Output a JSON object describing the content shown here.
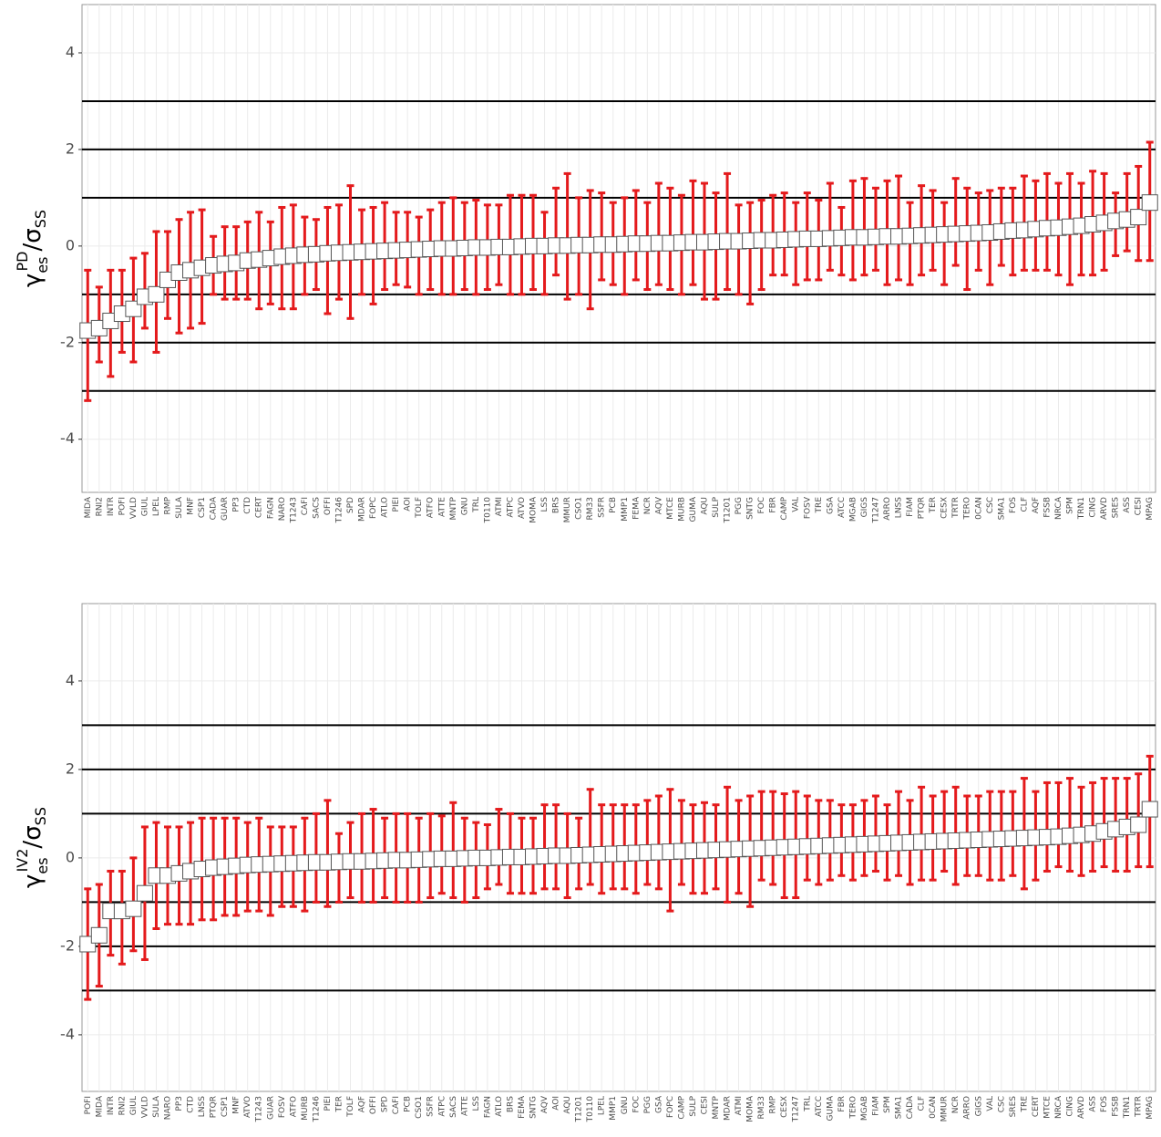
{
  "chart_data": [
    {
      "type": "errorbox",
      "ylabel": {
        "symbol": "γ",
        "sub": "es",
        "sup": "PD",
        "rest": "/σ",
        "rest_sub": "SS"
      },
      "categories": [
        "MIDA",
        "RNI2",
        "INTR",
        "POFI",
        "VVLD",
        "GIUL",
        "LPEL",
        "RMP",
        "SULA",
        "MNF",
        "CSP1",
        "CADA",
        "GUAR",
        "PP3",
        "CTD",
        "CERT",
        "FAGN",
        "NARO",
        "T1243",
        "CAFI",
        "SACS",
        "OFFI",
        "T1246",
        "SPD",
        "MDAR",
        "FOPC",
        "ATLO",
        "PIEI",
        "AOI",
        "TOLF",
        "ATFO",
        "ATTE",
        "MNTP",
        "GNU",
        "TRL",
        "T0110",
        "ATMI",
        "ATPC",
        "ATVO",
        "MOMA",
        "LSS",
        "BRS",
        "MMUR",
        "CSO1",
        "RM33",
        "SSFR",
        "PCB",
        "MMP1",
        "FEMA",
        "NCR",
        "AQV",
        "MTCE",
        "MURB",
        "GUMA",
        "AQU",
        "SULP",
        "T1201",
        "PGG",
        "SNTG",
        "FOC",
        "FBR",
        "CAMP",
        "VAL",
        "FOSV",
        "TRE",
        "GSA",
        "ATCC",
        "MGAB",
        "GIGS",
        "T1247",
        "ARRO",
        "LNSS",
        "FIAM",
        "PTQR",
        "TER",
        "CESX",
        "TRTR",
        "TERO",
        "0CAN",
        "CSC",
        "SMA1",
        "FOS",
        "CLF",
        "AQF",
        "FSSB",
        "NRCA",
        "SPM",
        "TRN1",
        "CING",
        "ARVD",
        "SRES",
        "ASS",
        "CESI",
        "MPAG"
      ],
      "values": [
        -1.75,
        -1.7,
        -1.55,
        -1.4,
        -1.3,
        -1.05,
        -1.0,
        -0.7,
        -0.55,
        -0.5,
        -0.45,
        -0.4,
        -0.37,
        -0.35,
        -0.3,
        -0.28,
        -0.25,
        -0.22,
        -0.2,
        -0.18,
        -0.17,
        -0.15,
        -0.14,
        -0.13,
        -0.12,
        -0.11,
        -0.1,
        -0.09,
        -0.08,
        -0.07,
        -0.06,
        -0.05,
        -0.05,
        -0.04,
        -0.03,
        -0.03,
        -0.02,
        -0.02,
        -0.01,
        0,
        0,
        0.01,
        0.01,
        0.02,
        0.02,
        0.03,
        0.03,
        0.04,
        0.05,
        0.05,
        0.06,
        0.06,
        0.07,
        0.08,
        0.08,
        0.09,
        0.1,
        0.1,
        0.11,
        0.12,
        0.12,
        0.13,
        0.14,
        0.15,
        0.15,
        0.16,
        0.17,
        0.18,
        0.18,
        0.19,
        0.2,
        0.2,
        0.21,
        0.22,
        0.23,
        0.24,
        0.25,
        0.26,
        0.27,
        0.28,
        0.3,
        0.32,
        0.33,
        0.35,
        0.37,
        0.38,
        0.4,
        0.42,
        0.45,
        0.48,
        0.52,
        0.55,
        0.6,
        0.9
      ],
      "error_low": [
        -3.2,
        -2.4,
        -2.7,
        -2.2,
        -2.4,
        -1.7,
        -2.2,
        -1.5,
        -1.8,
        -1.7,
        -1.6,
        -1.0,
        -1.1,
        -1.1,
        -1.1,
        -1.3,
        -1.2,
        -1.3,
        -1.3,
        -1.0,
        -0.9,
        -1.4,
        -1.1,
        -1.5,
        -1.0,
        -1.2,
        -0.9,
        -0.8,
        -0.85,
        -1.0,
        -0.9,
        -1.0,
        -1.0,
        -0.9,
        -1.0,
        -0.9,
        -0.8,
        -1.0,
        -1.0,
        -0.9,
        -1.0,
        -0.6,
        -1.1,
        -1.0,
        -1.3,
        -0.7,
        -0.8,
        -1.0,
        -0.7,
        -0.9,
        -0.8,
        -0.9,
        -1.0,
        -0.8,
        -1.1,
        -1.1,
        -0.9,
        -1.0,
        -1.2,
        -0.9,
        -0.6,
        -0.6,
        -0.8,
        -0.7,
        -0.7,
        -0.5,
        -0.6,
        -0.7,
        -0.6,
        -0.5,
        -0.8,
        -0.7,
        -0.8,
        -0.6,
        -0.5,
        -0.8,
        -0.4,
        -0.9,
        -0.5,
        -0.8,
        -0.4,
        -0.6,
        -0.5,
        -0.5,
        -0.5,
        -0.6,
        -0.8,
        -0.6,
        -0.6,
        -0.5,
        -0.2,
        -0.1,
        -0.3,
        -0.3
      ],
      "error_high": [
        -0.5,
        -0.85,
        -0.5,
        -0.5,
        -0.25,
        -0.15,
        0.3,
        0.3,
        0.55,
        0.7,
        0.75,
        0.2,
        0.4,
        0.4,
        0.5,
        0.7,
        0.5,
        0.8,
        0.85,
        0.6,
        0.55,
        0.8,
        0.85,
        1.25,
        0.75,
        0.8,
        0.9,
        0.7,
        0.7,
        0.6,
        0.75,
        0.9,
        1.0,
        0.9,
        0.95,
        0.85,
        0.85,
        1.05,
        1.05,
        1.05,
        0.7,
        1.2,
        1.5,
        1.0,
        1.15,
        1.1,
        0.9,
        1.0,
        1.15,
        0.9,
        1.3,
        1.2,
        1.05,
        1.35,
        1.3,
        1.1,
        1.5,
        0.85,
        0.9,
        0.95,
        1.05,
        1.1,
        0.9,
        1.1,
        0.95,
        1.3,
        0.8,
        1.35,
        1.4,
        1.2,
        1.35,
        1.45,
        0.9,
        1.25,
        1.15,
        0.9,
        1.4,
        1.2,
        1.1,
        1.15,
        1.2,
        1.2,
        1.45,
        1.35,
        1.5,
        1.3,
        1.5,
        1.3,
        1.55,
        1.5,
        1.1,
        1.5,
        1.65,
        2.15
      ],
      "ylim": [
        -5.1,
        5.0
      ],
      "yticks": [
        -4,
        -2,
        0,
        2,
        4
      ],
      "hlines": [
        -3,
        -2,
        -1,
        1,
        2,
        3
      ],
      "box_color": "#ffffff",
      "error_color": "#e41a1c",
      "grid": true
    },
    {
      "type": "errorbox",
      "ylabel": {
        "symbol": "γ",
        "sub": "es",
        "sup": "IV2",
        "rest": "/σ",
        "rest_sub": "SS"
      },
      "categories": [
        "POFI",
        "MIDA",
        "INTR",
        "RNI2",
        "GIUL",
        "VVLD",
        "SULA",
        "NARO",
        "PP3",
        "CTD",
        "LNSS",
        "PTQR",
        "CSP1",
        "MNF",
        "ATVO",
        "T1243",
        "GUAR",
        "FOSV",
        "ATFO",
        "MURB",
        "T1246",
        "PIEI",
        "TER",
        "TOLF",
        "AQF",
        "OFFI",
        "SPD",
        "CAFI",
        "PCB",
        "CSO1",
        "SSFR",
        "ATPC",
        "SACS",
        "ATTE",
        "LSS",
        "FAGN",
        "ATLO",
        "BRS",
        "FEMA",
        "SNTG",
        "AQV",
        "AOI",
        "AQU",
        "T1201",
        "T0110",
        "LPEL",
        "MMP1",
        "GNU",
        "FOC",
        "PGG",
        "GSA",
        "FOPC",
        "CAMP",
        "SULP",
        "CESI",
        "MNTP",
        "MDAR",
        "ATMI",
        "MOMA",
        "RM33",
        "RMP",
        "CESX",
        "T1247",
        "TRL",
        "ATCC",
        "GUMA",
        "FBR",
        "TERO",
        "MGAB",
        "FIAM",
        "SPM",
        "SMA1",
        "CADA",
        "CLF",
        "0CAN",
        "MMUR",
        "NCR",
        "ARRO",
        "GIGS",
        "VAL",
        "CSC",
        "SRES",
        "TRE",
        "CERT",
        "MTCE",
        "NRCA",
        "CING",
        "ARVD",
        "ASS",
        "FOS",
        "FSSB",
        "TRN1",
        "TRTR",
        "MPAG"
      ],
      "values": [
        -1.95,
        -1.75,
        -1.2,
        -1.2,
        -1.15,
        -0.8,
        -0.4,
        -0.4,
        -0.35,
        -0.3,
        -0.25,
        -0.22,
        -0.2,
        -0.18,
        -0.16,
        -0.15,
        -0.14,
        -0.13,
        -0.12,
        -0.11,
        -0.1,
        -0.1,
        -0.09,
        -0.08,
        -0.08,
        -0.07,
        -0.06,
        -0.05,
        -0.05,
        -0.04,
        -0.03,
        -0.02,
        -0.02,
        -0.01,
        0,
        0,
        0.01,
        0.02,
        0.02,
        0.03,
        0.04,
        0.05,
        0.05,
        0.06,
        0.07,
        0.08,
        0.09,
        0.1,
        0.11,
        0.12,
        0.13,
        0.14,
        0.15,
        0.16,
        0.17,
        0.18,
        0.19,
        0.2,
        0.21,
        0.22,
        0.23,
        0.24,
        0.25,
        0.26,
        0.27,
        0.28,
        0.29,
        0.3,
        0.31,
        0.32,
        0.33,
        0.34,
        0.35,
        0.36,
        0.37,
        0.38,
        0.39,
        0.4,
        0.41,
        0.42,
        0.43,
        0.44,
        0.45,
        0.46,
        0.47,
        0.48,
        0.5,
        0.52,
        0.55,
        0.6,
        0.65,
        0.7,
        0.75,
        1.1
      ],
      "error_low": [
        -3.2,
        -2.9,
        -2.2,
        -2.4,
        -2.1,
        -2.3,
        -1.6,
        -1.5,
        -1.5,
        -1.5,
        -1.4,
        -1.4,
        -1.3,
        -1.3,
        -1.2,
        -1.2,
        -1.3,
        -1.1,
        -1.1,
        -1.2,
        -1.0,
        -1.1,
        -1.0,
        -0.9,
        -1.0,
        -1.0,
        -0.9,
        -1.0,
        -1.0,
        -1.0,
        -0.9,
        -0.8,
        -0.9,
        -1.0,
        -0.9,
        -0.7,
        -0.6,
        -0.8,
        -0.8,
        -0.8,
        -0.7,
        -0.7,
        -0.9,
        -0.7,
        -0.6,
        -0.8,
        -0.7,
        -0.7,
        -0.8,
        -0.6,
        -0.7,
        -1.2,
        -0.6,
        -0.8,
        -0.8,
        -0.7,
        -1.0,
        -0.8,
        -1.1,
        -0.5,
        -0.6,
        -0.9,
        -0.9,
        -0.5,
        -0.6,
        -0.5,
        -0.4,
        -0.5,
        -0.4,
        -0.3,
        -0.5,
        -0.4,
        -0.6,
        -0.5,
        -0.5,
        -0.3,
        -0.6,
        -0.4,
        -0.4,
        -0.5,
        -0.5,
        -0.4,
        -0.7,
        -0.5,
        -0.3,
        -0.2,
        -0.3,
        -0.4,
        -0.3,
        -0.2,
        -0.3,
        -0.3,
        -0.2,
        -0.2
      ],
      "error_high": [
        -0.7,
        -0.6,
        -0.3,
        -0.3,
        0.0,
        0.7,
        0.8,
        0.7,
        0.7,
        0.8,
        0.9,
        0.9,
        0.9,
        0.9,
        0.8,
        0.9,
        0.7,
        0.7,
        0.7,
        0.9,
        1.0,
        1.3,
        0.55,
        0.8,
        1.0,
        1.1,
        0.9,
        1.0,
        1.0,
        0.9,
        1.0,
        0.95,
        1.25,
        0.9,
        0.8,
        0.75,
        1.1,
        1.0,
        0.9,
        0.9,
        1.2,
        1.2,
        1.0,
        0.9,
        1.55,
        1.2,
        1.2,
        1.2,
        1.2,
        1.3,
        1.4,
        1.55,
        1.3,
        1.2,
        1.25,
        1.2,
        1.6,
        1.3,
        1.4,
        1.5,
        1.5,
        1.45,
        1.5,
        1.4,
        1.3,
        1.3,
        1.2,
        1.2,
        1.3,
        1.4,
        1.2,
        1.5,
        1.3,
        1.6,
        1.4,
        1.5,
        1.6,
        1.4,
        1.4,
        1.5,
        1.5,
        1.5,
        1.8,
        1.5,
        1.7,
        1.7,
        1.8,
        1.6,
        1.7,
        1.8,
        1.8,
        1.8,
        1.9,
        2.3
      ],
      "ylim": [
        -5.28,
        5.75
      ],
      "yticks": [
        -4,
        -2,
        0,
        2,
        4
      ],
      "hlines": [
        -3,
        -2,
        -1,
        1,
        2,
        3
      ],
      "box_color": "#ffffff",
      "error_color": "#e41a1c",
      "grid": true
    }
  ]
}
